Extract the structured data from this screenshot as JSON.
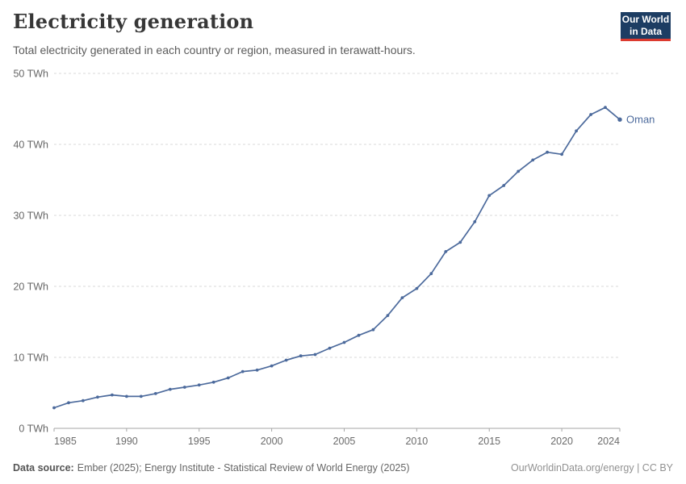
{
  "header": {
    "title": "Electricity generation",
    "subtitle": "Total electricity generated in each country or region, measured in terawatt-hours.",
    "logo": {
      "line1": "Our World",
      "line2": "in Data"
    }
  },
  "footer": {
    "datasource_label": "Data source:",
    "datasource_text": "Ember (2025); Energy Institute - Statistical Review of World Energy (2025)",
    "credit": "OurWorldinData.org/energy | CC BY"
  },
  "colors": {
    "line": "#4c6a9c",
    "logo_bg": "#1d3d63",
    "logo_red": "#dc3a2f",
    "grid": "#d9d9d9",
    "axis": "#a6a6a6"
  },
  "chart_data": {
    "type": "line",
    "title": "Electricity generation",
    "subtitle": "Total electricity generated in each country or region, measured in terawatt-hours.",
    "xlabel": "",
    "ylabel": "TWh",
    "xlim": [
      1985,
      2024
    ],
    "ylim": [
      0,
      50
    ],
    "grid": "horizontal-dashed",
    "legend": "end-of-line-label",
    "x_ticks": [
      1985,
      1990,
      1995,
      2000,
      2005,
      2010,
      2015,
      2020,
      2024
    ],
    "y_ticks": [
      0,
      10,
      20,
      30,
      40,
      50
    ],
    "y_tick_labels": [
      "0 TWh",
      "10 TWh",
      "20 TWh",
      "30 TWh",
      "40 TWh",
      "50 TWh"
    ],
    "series": [
      {
        "name": "Oman",
        "color": "#4c6a9c",
        "x": [
          1985,
          1986,
          1987,
          1988,
          1989,
          1990,
          1991,
          1992,
          1993,
          1994,
          1995,
          1996,
          1997,
          1998,
          1999,
          2000,
          2001,
          2002,
          2003,
          2004,
          2005,
          2006,
          2007,
          2008,
          2009,
          2010,
          2011,
          2012,
          2013,
          2014,
          2015,
          2016,
          2017,
          2018,
          2019,
          2020,
          2021,
          2022,
          2023,
          2024
        ],
        "values": [
          2.9,
          3.6,
          3.9,
          4.4,
          4.7,
          4.5,
          4.5,
          4.9,
          5.5,
          5.8,
          6.1,
          6.5,
          7.1,
          8.0,
          8.2,
          8.8,
          9.6,
          10.2,
          10.4,
          11.3,
          12.1,
          13.1,
          13.9,
          15.9,
          18.4,
          19.7,
          21.8,
          24.9,
          26.2,
          29.1,
          32.8,
          34.2,
          36.2,
          37.8,
          38.9,
          38.6,
          41.9,
          44.2,
          45.2,
          43.5
        ]
      }
    ]
  }
}
